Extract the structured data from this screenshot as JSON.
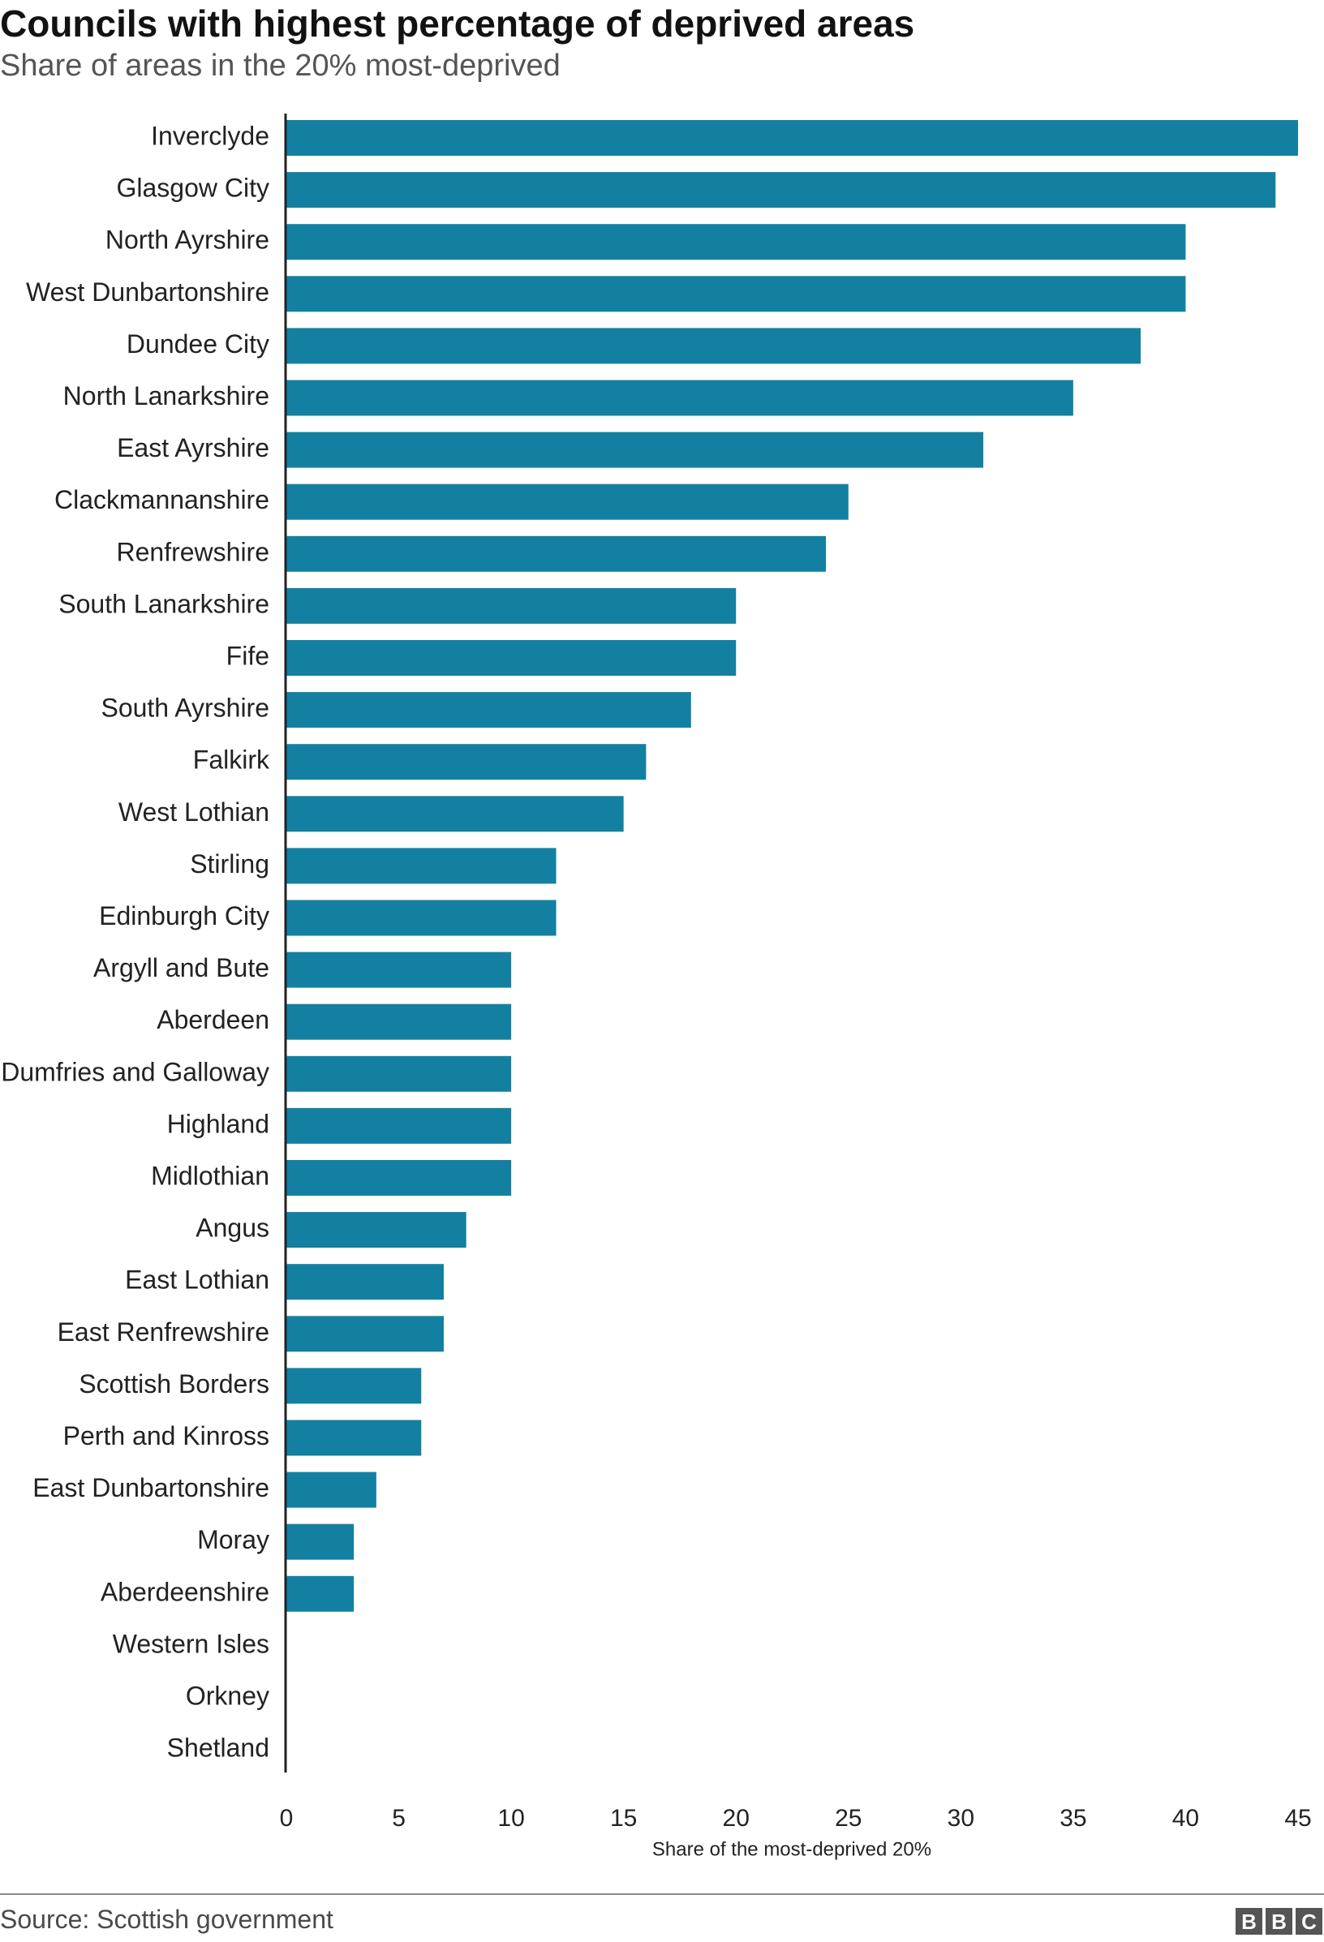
{
  "header": {
    "title": "Councils with highest percentage of deprived areas",
    "subtitle": "Share of areas in the 20% most-deprived"
  },
  "footer": {
    "source": "Source: Scottish government",
    "logo_letters": [
      "B",
      "B",
      "C"
    ]
  },
  "colors": {
    "bar": "#1380A1",
    "axis": "#222222",
    "text": "#222222"
  },
  "chart_data": {
    "type": "bar",
    "orientation": "horizontal",
    "title": "Councils with highest percentage of deprived areas",
    "subtitle": "Share of areas in the 20% most-deprived",
    "xlabel": "Share of the most-deprived 20%",
    "ylabel": "",
    "xlim": [
      0,
      45
    ],
    "xticks": [
      0,
      5,
      10,
      15,
      20,
      25,
      30,
      35,
      40,
      45
    ],
    "grid": false,
    "categories": [
      "Inverclyde",
      "Glasgow City",
      "North Ayrshire",
      "West Dunbartonshire",
      "Dundee City",
      "North Lanarkshire",
      "East Ayrshire",
      "Clackmannanshire",
      "Renfrewshire",
      "South Lanarkshire",
      "Fife",
      "South Ayrshire",
      "Falkirk",
      "West Lothian",
      "Stirling",
      "Edinburgh City",
      "Argyll and Bute",
      "Aberdeen",
      "Dumfries and Galloway",
      "Highland",
      "Midlothian",
      "Angus",
      "East Lothian",
      "East Renfrewshire",
      "Scottish Borders",
      "Perth and Kinross",
      "East Dunbartonshire",
      "Moray",
      "Aberdeenshire",
      "Western Isles",
      "Orkney",
      "Shetland"
    ],
    "values": [
      45,
      44,
      40,
      40,
      38,
      35,
      31,
      25,
      24,
      20,
      20,
      18,
      16,
      15,
      12,
      12,
      10,
      10,
      10,
      10,
      10,
      8,
      7,
      7,
      6,
      6,
      4,
      3,
      3,
      0,
      0,
      0
    ]
  }
}
